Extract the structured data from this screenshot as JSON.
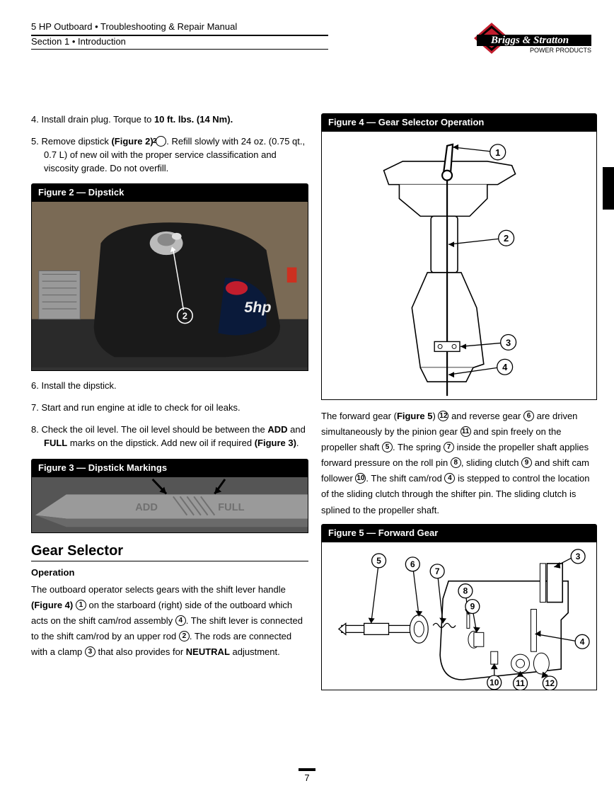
{
  "header": {
    "title": "5 HP Outboard • Troubleshooting & Repair Manual",
    "section": "Section 1 • Introduction"
  },
  "logo": {
    "brand_top": "Briggs & Stratton",
    "brand_sub": "POWER PRODUCTS",
    "colors": {
      "red": "#c11d2d",
      "black": "#000000"
    }
  },
  "left_col": {
    "steps_a": [
      {
        "n": "4.",
        "html": "Install drain plug. Torque to <b>10 ft. lbs. (14 Nm).</b>"
      },
      {
        "n": "5.",
        "html": "Remove dipstick <b>(Figure 2)</b> <span class='circ'>2</span>. Refill slowly with 24 oz. (0.75 qt., 0.7 L) of new oil with the proper service classification and viscosity grade. Do not overfill."
      }
    ],
    "fig2_title": "Figure 2 — Dipstick",
    "fig2_callout": "2",
    "fig2_photo_labels": {
      "engine_text": "5hp"
    },
    "steps_b": [
      {
        "n": "6.",
        "html": "Install the dipstick."
      },
      {
        "n": "7.",
        "html": "Start and run engine at idle to check for oil leaks."
      },
      {
        "n": "8.",
        "html": "Check the oil level. The oil level should be between the <b>ADD</b> and <b>FULL</b> marks on the dipstick. Add new oil if required <b>(Figure 3)</b>."
      }
    ],
    "fig3_title": "Figure 3 — Dipstick Markings",
    "fig3_labels": {
      "add": "ADD",
      "full": "FULL"
    },
    "h2": "Gear Selector",
    "h3": "Operation",
    "para": "The outboard operator selects gears with the shift lever handle <b>(Figure 4)</b> <span class='circ'>1</span> on the starboard (right) side of the outboard which acts on the shift cam/rod assembly <span class='circ'>4</span>. The shift lever is connected to the shift cam/rod by an upper rod <span class='circ'>2</span>. The rods are connected with a clamp <span class='circ'>3</span> that also provides for <b>NEUTRAL</b> adjustment."
  },
  "right_col": {
    "fig4_title": "Figure 4 — Gear Selector Operation",
    "fig4_callouts": [
      "1",
      "2",
      "3",
      "4"
    ],
    "para": "The forward gear (<b>Figure 5</b>) <span class='circ'>12</span> and reverse gear <span class='circ'>6</span> are driven simultaneously by the pinion gear <span class='circ'>11</span> and spin freely on the propeller shaft <span class='circ'>5</span>. The spring <span class='circ'>7</span> inside the propeller shaft applies forward pressure on the roll pin <span class='circ'>8</span>, sliding clutch <span class='circ'>9</span> and shift cam follower <span class='circ'>10</span>. The shift cam/rod <span class='circ'>4</span> is stepped to control the location of the sliding clutch through the shifter pin. The sliding clutch is splined to the propeller shaft.",
    "fig5_title": "Figure 5 — Forward Gear",
    "fig5_callouts": [
      "3",
      "4",
      "5",
      "6",
      "7",
      "8",
      "9",
      "10",
      "11",
      "12"
    ]
  },
  "page_number": "7"
}
